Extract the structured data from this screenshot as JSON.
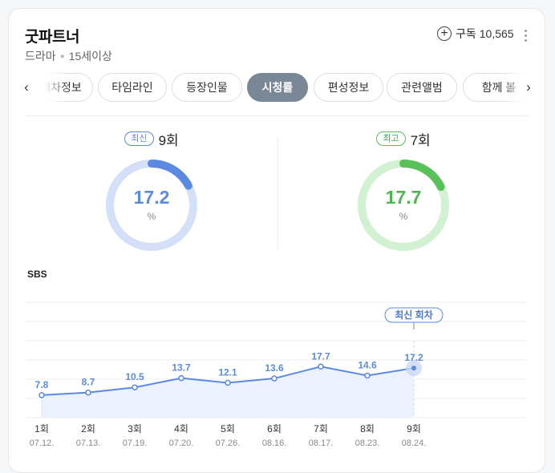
{
  "header": {
    "title": "굿파트너",
    "genre": "드라마",
    "rating": "15세이상",
    "subscribe_label": "구독",
    "subscriber_count": "10,565"
  },
  "tabs": [
    {
      "label": "재차정보",
      "active": false
    },
    {
      "label": "타임라인",
      "active": false
    },
    {
      "label": "등장인물",
      "active": false
    },
    {
      "label": "시청률",
      "active": true
    },
    {
      "label": "편성정보",
      "active": false
    },
    {
      "label": "관련앨범",
      "active": false
    },
    {
      "label": "함께 볼",
      "active": false
    }
  ],
  "latest": {
    "badge": "최신",
    "episode": "9회",
    "value": "17.2",
    "percent": 17.2,
    "unit": "%",
    "color": "#5b8ae0",
    "track_color": "#d3e0f8"
  },
  "highest": {
    "badge": "최고",
    "episode": "7회",
    "value": "17.7",
    "percent": 17.7,
    "unit": "%",
    "color": "#58c15a",
    "track_color": "#d2f0d2"
  },
  "network": "SBS",
  "chart_data": {
    "type": "line",
    "x": [
      "1회",
      "2회",
      "3회",
      "4회",
      "5회",
      "6회",
      "7회",
      "8회",
      "9회"
    ],
    "dates": [
      "07.12.",
      "07.13.",
      "07.19.",
      "07.20.",
      "07.26.",
      "08.16.",
      "08.17.",
      "08.23.",
      "08.24."
    ],
    "values": [
      7.8,
      8.7,
      10.5,
      13.7,
      12.1,
      13.6,
      17.7,
      14.6,
      17.2
    ],
    "labels": [
      "7.8",
      "8.7",
      "10.5",
      "13.7",
      "12.1",
      "13.6",
      "17.7",
      "14.6",
      "17.2"
    ],
    "ylim": [
      0,
      40
    ],
    "grid": true,
    "latest_annotation": "최신 회차",
    "line_color": "#5b8ae0",
    "fill_color": "#ecf2fd"
  }
}
